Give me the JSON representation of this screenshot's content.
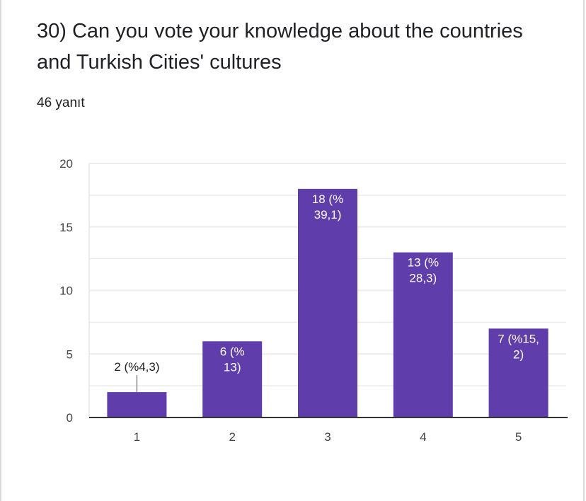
{
  "question": {
    "title": "30) Can you vote your knowledge about the countries and Turkish Cities' cultures",
    "response_count": "46 yanıt"
  },
  "colors": {
    "bar": "#5f3dab",
    "grid": "#ebebeb",
    "axis": "#333333"
  },
  "chart_data": {
    "type": "bar",
    "title": "30) Can you vote your knowledge about the countries and Turkish Cities' cultures",
    "categories": [
      "1",
      "2",
      "3",
      "4",
      "5"
    ],
    "values": [
      2,
      6,
      18,
      13,
      7
    ],
    "data_labels": [
      [
        "2 (%4,3)"
      ],
      [
        "6 (%",
        "13)"
      ],
      [
        "18 (%",
        "39,1)"
      ],
      [
        "13 (%",
        "28,3)"
      ],
      [
        "7 (%15,",
        "2)"
      ]
    ],
    "yticks": [
      "0",
      "5",
      "10",
      "15",
      "20"
    ],
    "ylim": [
      0,
      20
    ],
    "xlabel": "",
    "ylabel": "",
    "grid": true
  }
}
